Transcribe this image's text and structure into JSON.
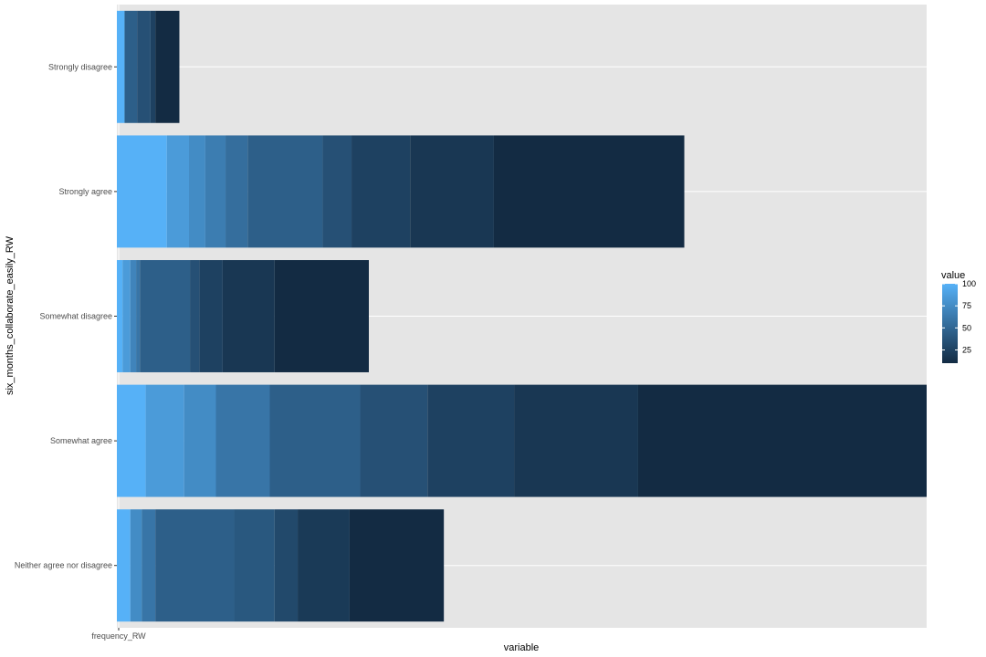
{
  "chart_data": {
    "type": "bar",
    "orientation": "horizontal",
    "stacked": true,
    "xlabel": "variable",
    "ylabel": "six_months_collaborate_easily_RW",
    "x_tick_labels": [
      "frequency_RW"
    ],
    "categories": [
      "Neither agree nor disagree",
      "Somewhat agree",
      "Somewhat disagree",
      "Strongly agree",
      "Strongly disagree"
    ],
    "segments": [
      {
        "category": "Neither agree nor disagree",
        "values": [
          14,
          12,
          14,
          82,
          42,
          24,
          54,
          98
        ],
        "colors": [
          100,
          75,
          60,
          45,
          40,
          30,
          20,
          10
        ]
      },
      {
        "category": "Somewhat agree",
        "values": [
          30,
          40,
          33,
          56,
          94,
          70,
          90,
          129,
          300
        ],
        "colors": [
          100,
          85,
          75,
          60,
          45,
          35,
          25,
          18,
          10
        ]
      },
      {
        "category": "Somewhat disagree",
        "values": [
          6,
          8,
          6,
          4,
          52,
          10,
          24,
          54,
          98
        ],
        "colors": [
          100,
          85,
          70,
          60,
          45,
          35,
          25,
          18,
          10
        ]
      },
      {
        "category": "Strongly agree",
        "values": [
          52,
          23,
          17,
          21,
          23,
          78,
          30,
          61,
          87,
          198
        ],
        "colors": [
          100,
          85,
          75,
          65,
          55,
          45,
          35,
          25,
          18,
          10
        ]
      },
      {
        "category": "Strongly disagree",
        "values": [
          8,
          13,
          14,
          5,
          25
        ],
        "colors": [
          100,
          45,
          35,
          25,
          10
        ]
      }
    ],
    "legend": {
      "title": "value",
      "position": "right",
      "ticks": [
        100,
        75,
        50,
        25
      ],
      "range": [
        10,
        100
      ],
      "color_low": "#132B43",
      "color_high": "#56B1F7"
    },
    "panel_background": "#E5E5E5",
    "gridlines": "white",
    "grid": true
  }
}
